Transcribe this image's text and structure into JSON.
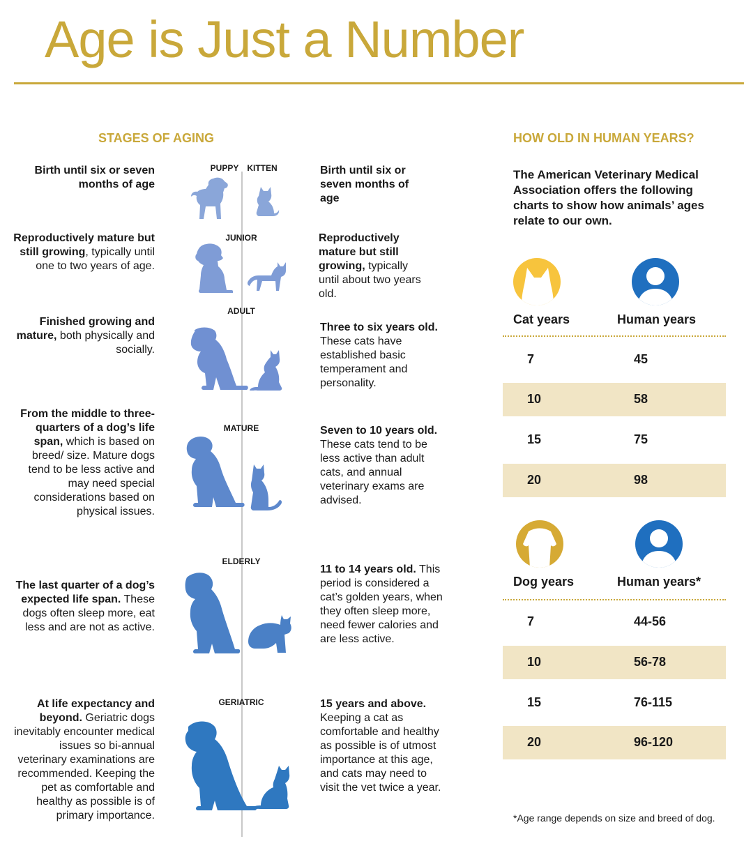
{
  "title": "Age is Just a Number",
  "stages": {
    "heading": "STAGES OF AGING",
    "rows": [
      {
        "labels": [
          "PUPPY",
          "KITTEN"
        ],
        "dog": {
          "bold": "Birth until six or seven months of age",
          "rest": ""
        },
        "cat": {
          "bold": "Birth until six or seven months of age",
          "rest": ""
        }
      },
      {
        "labels": [
          "JUNIOR"
        ],
        "dog": {
          "bold": "Reproductively mature but still growing",
          "rest": ", typically until one to two years of age."
        },
        "cat": {
          "bold": "Reproductively mature but still growing,",
          "rest": " typically until about two years old."
        }
      },
      {
        "labels": [
          "ADULT"
        ],
        "dog": {
          "bold": "Finished growing and mature,",
          "rest": " both physically and socially."
        },
        "cat": {
          "bold": "Three to six years old.",
          "rest": " These cats have established basic temperament and personality."
        }
      },
      {
        "labels": [
          "MATURE"
        ],
        "dog": {
          "bold": "From the middle to three-quarters of a dog’s life span,",
          "rest": " which is based on breed/ size. Mature dogs tend to be less active and may need special considerations based on physical issues."
        },
        "cat": {
          "bold": "Seven to 10 years old.",
          "rest": " These cats tend to be less active than adult cats, and annual veterinary exams are advised."
        }
      },
      {
        "labels": [
          "ELDERLY"
        ],
        "dog": {
          "bold": "The last quarter of a dog’s expected life span.",
          "rest": " These dogs often sleep more, eat less and are not as active."
        },
        "cat": {
          "bold": "11 to 14 years old.",
          "rest": " This period is considered a cat’s golden years, when they often sleep more, need fewer calories and are less active."
        }
      },
      {
        "labels": [
          "GERIATRIC"
        ],
        "dog": {
          "bold": "At life expectancy and beyond.",
          "rest": " Geriatric dogs inevitably encounter medical issues so bi-annual veterinary examinations are recommended. Keeping the pet as comfortable and healthy as possible is of primary importance."
        },
        "cat": {
          "bold": "15 years and above.",
          "rest": " Keeping a cat as comfortable and healthy as possible is of utmost importance at this age, and cats may need to visit the vet twice a year."
        }
      }
    ]
  },
  "human_years": {
    "heading": "HOW OLD IN HUMAN YEARS?",
    "intro": "The American Veterinary Medical Association offers the following charts to show how animals’ ages relate to our own.",
    "cat_table": {
      "col1": "Cat years",
      "col2": "Human years",
      "rows": [
        [
          "7",
          "45"
        ],
        [
          "10",
          "58"
        ],
        [
          "15",
          "75"
        ],
        [
          "20",
          "98"
        ]
      ]
    },
    "dog_table": {
      "col1": "Dog years",
      "col2": "Human years*",
      "rows": [
        [
          "7",
          "44-56"
        ],
        [
          "10",
          "56-78"
        ],
        [
          "15",
          "76-115"
        ],
        [
          "20",
          "96-120"
        ]
      ]
    },
    "footnote": "*Age range depends on size and breed of dog."
  },
  "icons": {
    "cat_avatar": "cat-head-icon",
    "dog_avatar": "dog-head-icon",
    "human_avatar": "person-icon"
  },
  "colors": {
    "gold": "#c9a83a",
    "shade": "#f1e5c5",
    "human_blue": "#1f6fbf",
    "stage_blues": [
      "#8aa6d9",
      "#7f9cd6",
      "#7090d2",
      "#5d88cc",
      "#4a80c6",
      "#2f78c0"
    ]
  }
}
